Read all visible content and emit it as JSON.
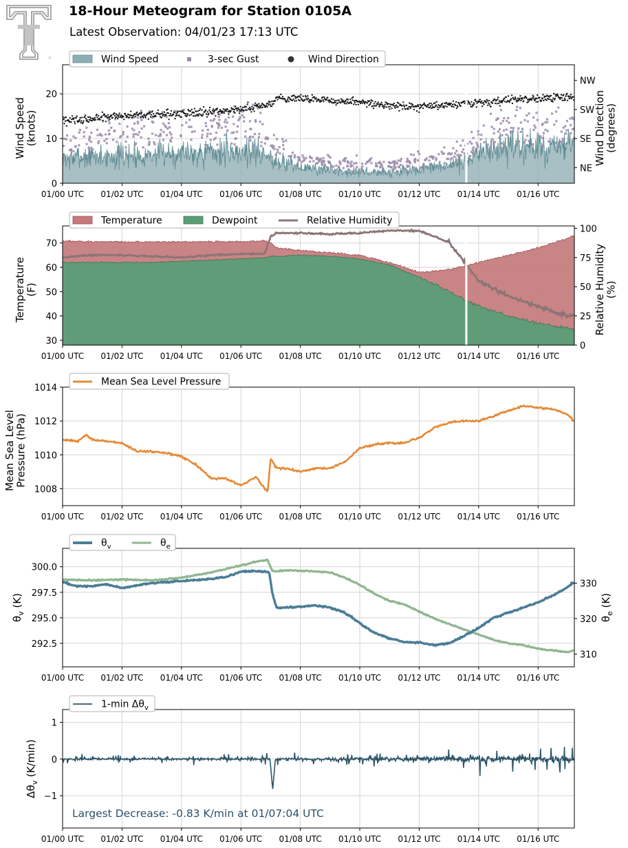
{
  "header": {
    "title": "18-Hour Meteogram for Station 0105A",
    "subtitle": "Latest Observation: 04/01/23 17:13 UTC"
  },
  "colors": {
    "wind_speed": "#8fadb4",
    "wind_speed_line": "#5f8d94",
    "gust": "#9a8aaa",
    "wind_dir": "#1a1a1a",
    "temperature": "#c47a7c",
    "dewpoint": "#5b9d77",
    "rh": "#8c7475",
    "mslp": "#e58b38",
    "theta_v": "#4b7d95",
    "theta_e": "#8fb690",
    "dtheta": "#2d5468",
    "grid": "#d4d4d4",
    "logo": "#a9a9a9"
  },
  "x_tick_labels": [
    "01/00 UTC",
    "01/02 UTC",
    "01/04 UTC",
    "01/06 UTC",
    "01/08 UTC",
    "01/10 UTC",
    "01/12 UTC",
    "01/14 UTC",
    "01/16 UTC"
  ],
  "chart_data": [
    {
      "id": "wind",
      "type": "area",
      "x_range_hours": [
        0,
        17.22
      ],
      "legend": [
        "Wind Speed",
        "3-sec Gust",
        "Wind Direction"
      ],
      "ylabel": "Wind Speed\n(knots)",
      "ylim": [
        0,
        26.5
      ],
      "yticks": [
        0,
        10,
        20
      ],
      "y2label": "Wind Direction\n(degrees)",
      "y2ticks": [
        "NE",
        "SE",
        "SW",
        "NW"
      ],
      "grid": true,
      "data_gap_hours": [
        13.55,
        13.62
      ],
      "series": [
        {
          "name": "Wind Speed",
          "x": [
            0,
            1,
            2,
            3,
            4,
            5,
            6,
            6.5,
            7,
            8,
            9,
            10,
            11,
            12,
            13,
            13.5,
            14,
            15,
            16,
            17,
            17.2
          ],
          "values": [
            5.5,
            6,
            6,
            6.5,
            7,
            7,
            7,
            7.5,
            5.5,
            3.5,
            3,
            2.5,
            2.5,
            3,
            4,
            4.5,
            7,
            8,
            8,
            8,
            9
          ]
        },
        {
          "name": "3-sec Gust",
          "x": [
            0,
            1,
            2,
            3,
            4,
            5,
            6,
            6.5,
            7,
            8,
            9,
            10,
            11,
            12,
            13,
            13.5,
            14,
            15,
            16,
            17,
            17.2
          ],
          "values": [
            9,
            10,
            11,
            12,
            12.5,
            12,
            13,
            13,
            9,
            5,
            4.5,
            4,
            4,
            5,
            6.5,
            7,
            10,
            12,
            12,
            12,
            13
          ]
        },
        {
          "name": "Wind Direction",
          "x": [
            0,
            1,
            2,
            3,
            4,
            5,
            6,
            6.5,
            7,
            7.2,
            8,
            9,
            10,
            11,
            12,
            13,
            14,
            15,
            16,
            17,
            17.2
          ],
          "values": [
            14,
            14.5,
            15,
            15.5,
            15.5,
            16,
            16.5,
            17,
            17.5,
            19,
            19,
            18.5,
            18,
            17.5,
            17,
            17.5,
            18,
            18.5,
            19,
            19,
            19
          ]
        }
      ]
    },
    {
      "id": "temperature",
      "type": "area",
      "x_range_hours": [
        0,
        17.22
      ],
      "legend": [
        "Temperature",
        "Dewpoint",
        "Relative Humidity"
      ],
      "ylabel": "Temperature\n(F)",
      "ylim": [
        28,
        77
      ],
      "yticks": [
        30,
        40,
        50,
        60,
        70
      ],
      "y2label": "Relative Humidity\n(%)",
      "y2lim": [
        0,
        102
      ],
      "y2ticks": [
        0,
        25,
        50,
        75,
        100
      ],
      "grid": true,
      "data_gap_hours": [
        13.55,
        13.62
      ],
      "series": [
        {
          "name": "Temperature",
          "x": [
            0,
            1,
            2,
            3,
            4,
            5,
            6,
            6.8,
            7.0,
            7.2,
            8,
            9,
            10,
            11,
            12,
            13,
            14,
            15,
            16,
            17,
            17.2
          ],
          "values": [
            71,
            70.5,
            70.5,
            70.5,
            70.5,
            70.5,
            70.5,
            71,
            70,
            68,
            67,
            66,
            65,
            62,
            58,
            59,
            62,
            65,
            68,
            72,
            73
          ]
        },
        {
          "name": "Dewpoint",
          "x": [
            0,
            1,
            2,
            3,
            4,
            5,
            6,
            6.8,
            7.0,
            7.2,
            8,
            9,
            10,
            11,
            12,
            13,
            14,
            15,
            16,
            17,
            17.2
          ],
          "values": [
            62,
            62,
            62,
            62,
            62.5,
            63,
            63.5,
            64,
            64.5,
            64.5,
            65,
            64.5,
            63.5,
            61,
            56,
            50,
            44,
            40,
            37,
            35,
            34
          ]
        },
        {
          "name": "Relative Humidity",
          "x": [
            0,
            1,
            2,
            3,
            4,
            5,
            6,
            6.8,
            7.0,
            7.2,
            8,
            9,
            10,
            11,
            12,
            13,
            13.5,
            14,
            15,
            16,
            17,
            17.2
          ],
          "values": [
            75,
            77,
            77,
            76,
            75,
            77,
            78,
            78,
            93,
            96,
            96,
            95,
            96,
            98,
            98,
            88,
            72,
            55,
            42,
            33,
            25,
            26
          ]
        }
      ]
    },
    {
      "id": "pressure",
      "type": "line",
      "x_range_hours": [
        0,
        17.22
      ],
      "legend": [
        "Mean Sea Level Pressure"
      ],
      "ylabel": "Mean Sea Level\nPressure (hPa)",
      "ylim": [
        1007,
        1014
      ],
      "yticks": [
        1008,
        1010,
        1012,
        1014
      ],
      "grid": true,
      "series": [
        {
          "name": "Mean Sea Level Pressure",
          "x": [
            0,
            0.5,
            0.8,
            1.0,
            1.5,
            2.0,
            2.5,
            3.0,
            3.5,
            4.0,
            4.5,
            5.0,
            5.5,
            6.0,
            6.5,
            6.9,
            7.0,
            7.2,
            7.5,
            8.0,
            8.5,
            9.0,
            9.5,
            10.0,
            10.5,
            11.0,
            11.5,
            12.0,
            12.5,
            13.0,
            13.5,
            14.0,
            14.5,
            15.0,
            15.5,
            16.0,
            16.5,
            17.0,
            17.2
          ],
          "values": [
            1010.9,
            1010.8,
            1011.2,
            1010.9,
            1010.8,
            1010.7,
            1010.2,
            1010.2,
            1010.1,
            1009.9,
            1009.4,
            1008.6,
            1008.6,
            1008.2,
            1008.7,
            1007.8,
            1009.8,
            1009.2,
            1009.2,
            1009.0,
            1009.2,
            1009.2,
            1009.6,
            1010.4,
            1010.6,
            1010.7,
            1010.7,
            1011.0,
            1011.6,
            1011.9,
            1012.0,
            1012.0,
            1012.3,
            1012.6,
            1012.9,
            1012.8,
            1012.7,
            1012.4,
            1012.0
          ]
        }
      ]
    },
    {
      "id": "theta",
      "type": "line",
      "x_range_hours": [
        0,
        17.22
      ],
      "legend": [
        "θv",
        "θe"
      ],
      "ylabel": "θv (K)",
      "ylim": [
        290.2,
        301.8
      ],
      "yticks": [
        292.5,
        295.0,
        297.5,
        300.0
      ],
      "y2label": "θe (K)",
      "y2lim": [
        306.4,
        339.8
      ],
      "y2ticks": [
        310,
        320,
        330
      ],
      "grid": true,
      "series": [
        {
          "name": "θv",
          "x": [
            0,
            0.5,
            1.0,
            1.5,
            2.0,
            3.0,
            4.0,
            5.0,
            5.5,
            6.0,
            6.5,
            6.95,
            7.05,
            7.2,
            7.5,
            8.0,
            8.5,
            9.0,
            9.5,
            10.0,
            10.5,
            11.0,
            11.5,
            12.0,
            12.5,
            13.0,
            13.5,
            14.0,
            14.5,
            15.0,
            15.5,
            16.0,
            16.5,
            17.0,
            17.2
          ],
          "values": [
            298.5,
            298.1,
            298.1,
            298.3,
            297.9,
            298.4,
            298.6,
            298.8,
            299.0,
            299.5,
            299.6,
            299.5,
            297.5,
            296.0,
            296.0,
            296.1,
            296.2,
            296.0,
            295.5,
            294.5,
            293.5,
            293.0,
            292.6,
            292.6,
            292.3,
            292.5,
            293.2,
            294.0,
            295.0,
            295.5,
            296.0,
            296.5,
            297.2,
            298.0,
            298.5
          ]
        },
        {
          "name": "θe",
          "x": [
            0,
            1.0,
            2.0,
            3.0,
            4.0,
            5.0,
            6.0,
            6.5,
            6.9,
            7.05,
            7.2,
            7.5,
            8.0,
            9.0,
            9.5,
            10.0,
            10.5,
            11.0,
            11.5,
            12.0,
            12.5,
            13.0,
            13.5,
            14.0,
            14.5,
            15.0,
            15.5,
            16.0,
            16.5,
            17.0,
            17.2
          ],
          "values": [
            331.0,
            330.8,
            331.0,
            330.8,
            331.5,
            333.0,
            335.0,
            336.0,
            336.5,
            333.5,
            333.3,
            333.6,
            333.5,
            333.0,
            331.5,
            329.5,
            327.0,
            325.0,
            324.0,
            322.0,
            320.0,
            318.5,
            317.0,
            315.5,
            314.0,
            313.0,
            312.5,
            311.5,
            311.0,
            310.5,
            311.0
          ]
        }
      ]
    },
    {
      "id": "dtheta",
      "type": "line",
      "x_range_hours": [
        0,
        17.22
      ],
      "legend": [
        "1-min Δθv"
      ],
      "ylabel": "Δθv (K/min)",
      "ylim": [
        -1.88,
        1.35
      ],
      "yticks": [
        -1,
        0,
        1
      ],
      "grid": true,
      "annotation": "Largest Decrease: -0.83 K/min at 01/07:04 UTC",
      "series": [
        {
          "name": "1-min Δθv",
          "spike_hour": 7.07,
          "spike_value": -0.83,
          "noise_amplitude_start": 0.08,
          "noise_amplitude_end": 0.3
        }
      ]
    }
  ]
}
